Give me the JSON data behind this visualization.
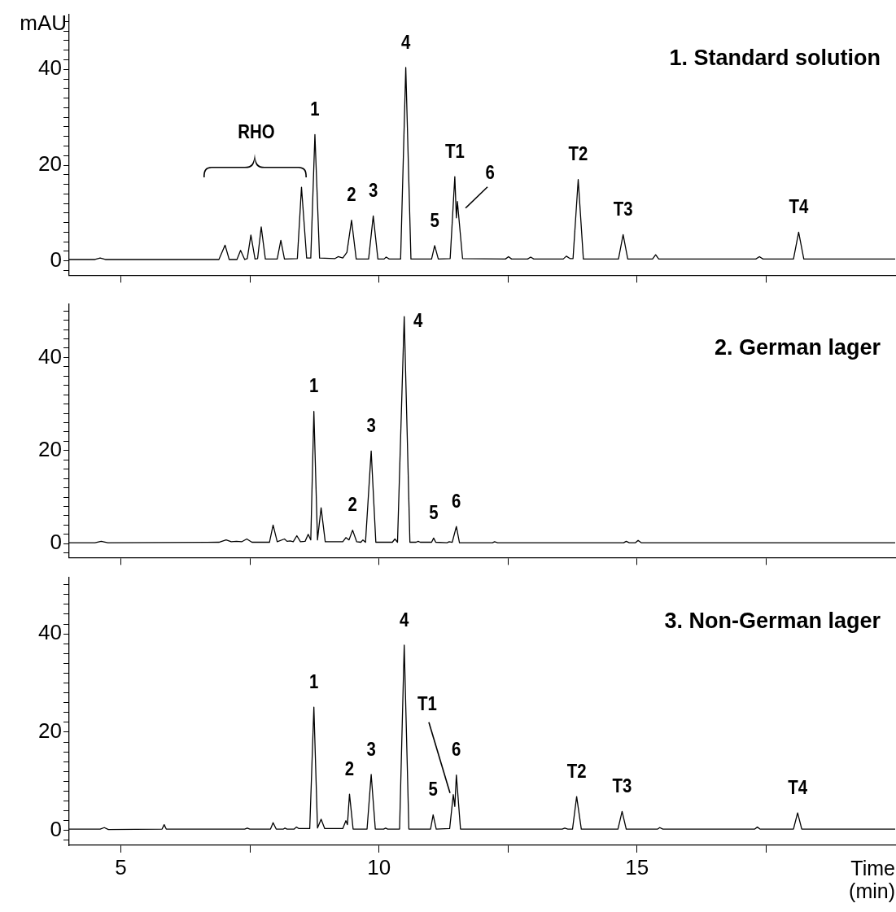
{
  "chart_data": [
    {
      "type": "line",
      "title": "1. Standard solution",
      "ylabel": "mAU",
      "series": [
        {
          "color": "#000000",
          "x": [
            4.0,
            4.5,
            4.6,
            4.7,
            6.9,
            7.02,
            7.1,
            7.25,
            7.32,
            7.4,
            7.45,
            7.52,
            7.6,
            7.65,
            7.72,
            7.8,
            8.03,
            8.1,
            8.17,
            8.42,
            8.5,
            8.6,
            8.68,
            8.76,
            8.85,
            9.15,
            9.21,
            9.3,
            9.38,
            9.47,
            9.56,
            9.8,
            9.89,
            9.98,
            10.1,
            10.14,
            10.2,
            10.42,
            10.52,
            10.62,
            11.02,
            11.08,
            11.15,
            11.38,
            11.47,
            11.5,
            11.52,
            11.62,
            12.45,
            12.51,
            12.57,
            12.88,
            12.94,
            13.0,
            13.57,
            13.63,
            13.7,
            13.76,
            13.86,
            13.96,
            14.64,
            14.73,
            14.82,
            15.3,
            15.36,
            15.42,
            17.3,
            17.37,
            17.44,
            18.03,
            18.13,
            18.23,
            20
          ],
          "values": [
            0.3,
            0.3,
            0.6,
            0.3,
            0.3,
            3.3,
            0.3,
            0.3,
            2.2,
            0.3,
            0.5,
            5.4,
            0.4,
            0.5,
            7.1,
            0.4,
            0.4,
            4.3,
            0.4,
            0.5,
            15.4,
            0.6,
            0.6,
            26.4,
            0.6,
            0.5,
            0.9,
            0.6,
            1.8,
            8.5,
            0.4,
            0.4,
            9.4,
            0.4,
            0.4,
            0.8,
            0.4,
            0.4,
            40.4,
            0.4,
            0.4,
            3.2,
            0.4,
            0.5,
            17.6,
            9.0,
            12.4,
            0.5,
            0.4,
            0.9,
            0.4,
            0.4,
            0.8,
            0.4,
            0.4,
            1.0,
            0.5,
            0.5,
            17.0,
            0.4,
            0.4,
            5.5,
            0.4,
            0.4,
            1.3,
            0.4,
            0.4,
            0.9,
            0.4,
            0.4,
            6.0,
            0.4,
            0.4
          ]
        }
      ],
      "xlim": [
        4,
        20
      ],
      "ylim": [
        -3,
        51.5
      ],
      "xticks": [
        5,
        {
          "value": 7.5,
          "label": null
        },
        10,
        {
          "value": 12.5,
          "label": null
        },
        15,
        {
          "value": 17.5,
          "label": null
        }
      ],
      "yticks": [
        {
          "value": -2,
          "label": null
        },
        0,
        {
          "value": 2,
          "label": null
        },
        {
          "value": 4,
          "label": null
        },
        {
          "value": 6,
          "label": null
        },
        {
          "value": 8,
          "label": null
        },
        {
          "value": 10,
          "label": null
        },
        {
          "value": 12,
          "label": null
        },
        {
          "value": 14,
          "label": null
        },
        {
          "value": 16,
          "label": null
        },
        {
          "value": 18,
          "label": null
        },
        20,
        {
          "value": 22,
          "label": null
        },
        {
          "value": 24,
          "label": null
        },
        {
          "value": 26,
          "label": null
        },
        {
          "value": 28,
          "label": null
        },
        {
          "value": 30,
          "label": null
        },
        {
          "value": 32,
          "label": null
        },
        {
          "value": 34,
          "label": null
        },
        {
          "value": 36,
          "label": null
        },
        {
          "value": 38,
          "label": null
        },
        40,
        {
          "value": 42,
          "label": null
        },
        {
          "value": 44,
          "label": null
        },
        {
          "value": 46,
          "label": null
        },
        {
          "value": 48,
          "label": null
        },
        {
          "value": 50,
          "label": null
        }
      ],
      "tick_labels": "y",
      "marker": "none",
      "annotations": [
        "RHO",
        {
          "text": "1",
          "x": 8.76,
          "y": 26.4
        },
        {
          "text": "2",
          "x": 9.47,
          "y": 8.5
        },
        {
          "text": "3",
          "x": 9.89,
          "y": 9.4
        },
        {
          "text": "4",
          "x": 10.52,
          "y": 40.4
        },
        {
          "text": "5",
          "x": 11.08,
          "y": 3.2
        },
        {
          "text": "T1",
          "x": 11.47,
          "y": 17.6
        },
        {
          "text": "6",
          "x": 11.52,
          "y": 12.4
        },
        {
          "text": "T2",
          "x": 13.86,
          "y": 17.0
        },
        {
          "text": "T3",
          "x": 14.73,
          "y": 5.5
        },
        {
          "text": "T4",
          "x": 18.13,
          "y": 6.0
        }
      ]
    },
    {
      "type": "line",
      "title": "2. German lager",
      "series": [
        {
          "color": "#000000",
          "x": [
            4.0,
            4.5,
            4.62,
            4.75,
            6.9,
            7.04,
            7.14,
            7.24,
            7.34,
            7.44,
            7.54,
            7.88,
            7.95,
            8.03,
            8.17,
            8.22,
            8.28,
            8.34,
            8.41,
            8.48,
            8.57,
            8.63,
            8.68,
            8.74,
            8.81,
            8.88,
            8.96,
            9.3,
            9.36,
            9.42,
            9.49,
            9.57,
            9.65,
            9.69,
            9.74,
            9.85,
            9.94,
            10.26,
            10.31,
            10.36,
            10.49,
            10.6,
            10.72,
            10.76,
            10.8,
            11.02,
            11.06,
            11.1,
            11.32,
            11.36,
            11.42,
            11.5,
            11.56,
            12.2,
            12.24,
            12.3,
            14.74,
            14.79,
            14.85,
            14.97,
            15.02,
            15.08,
            20
          ],
          "values": [
            0.2,
            0.2,
            0.5,
            0.2,
            0.3,
            0.8,
            0.4,
            0.5,
            0.4,
            1.0,
            0.3,
            0.3,
            4.0,
            0.4,
            1.0,
            0.5,
            0.6,
            0.4,
            1.7,
            0.4,
            0.5,
            2.0,
            0.8,
            28.4,
            0.8,
            7.7,
            0.4,
            0.4,
            1.3,
            0.8,
            2.9,
            0.4,
            0.3,
            0.8,
            0.3,
            19.9,
            0.3,
            0.3,
            1.0,
            0.3,
            48.8,
            0.3,
            0.3,
            0.5,
            0.3,
            0.3,
            1.2,
            0.3,
            0.2,
            0.4,
            0.3,
            3.7,
            0.2,
            0.2,
            0.4,
            0.2,
            0.2,
            0.5,
            0.2,
            0.2,
            0.7,
            0.2,
            0.2
          ]
        }
      ],
      "xlim": [
        4,
        20
      ],
      "ylim": [
        -3,
        51.5
      ],
      "xticks": [
        5,
        {
          "value": 7.5,
          "label": null
        },
        10,
        {
          "value": 12.5,
          "label": null
        },
        15,
        {
          "value": 17.5,
          "label": null
        }
      ],
      "yticks": [
        {
          "value": -2,
          "label": null
        },
        0,
        {
          "value": 2,
          "label": null
        },
        {
          "value": 4,
          "label": null
        },
        {
          "value": 6,
          "label": null
        },
        {
          "value": 8,
          "label": null
        },
        {
          "value": 10,
          "label": null
        },
        {
          "value": 12,
          "label": null
        },
        {
          "value": 14,
          "label": null
        },
        {
          "value": 16,
          "label": null
        },
        {
          "value": 18,
          "label": null
        },
        20,
        {
          "value": 22,
          "label": null
        },
        {
          "value": 24,
          "label": null
        },
        {
          "value": 26,
          "label": null
        },
        {
          "value": 28,
          "label": null
        },
        {
          "value": 30,
          "label": null
        },
        {
          "value": 32,
          "label": null
        },
        {
          "value": 34,
          "label": null
        },
        {
          "value": 36,
          "label": null
        },
        {
          "value": 38,
          "label": null
        },
        40,
        {
          "value": 42,
          "label": null
        },
        {
          "value": 44,
          "label": null
        },
        {
          "value": 46,
          "label": null
        },
        {
          "value": 48,
          "label": null
        },
        {
          "value": 50,
          "label": null
        }
      ],
      "tick_labels": "y",
      "marker": "none",
      "annotations": [
        {
          "text": "1",
          "x": 8.74,
          "y": 28.4
        },
        {
          "text": "2",
          "x": 9.49,
          "y": 2.9
        },
        {
          "text": "3",
          "x": 9.85,
          "y": 19.9
        },
        {
          "text": "4",
          "x": 10.49,
          "y": 48.8
        },
        {
          "text": "5",
          "x": 11.06,
          "y": 1.2
        },
        {
          "text": "6",
          "x": 11.5,
          "y": 3.7
        }
      ]
    },
    {
      "type": "line",
      "title": "3. Non-German lager",
      "xlabel": "Time (min)",
      "series": [
        {
          "color": "#000000",
          "x": [
            4.0,
            4.6,
            4.68,
            4.76,
            5.8,
            5.84,
            5.88,
            7.4,
            7.45,
            7.5,
            7.9,
            7.95,
            8.01,
            8.15,
            8.18,
            8.22,
            8.36,
            8.4,
            8.45,
            8.66,
            8.74,
            8.81,
            8.88,
            8.95,
            9.3,
            9.36,
            9.39,
            9.43,
            9.5,
            9.77,
            9.85,
            9.93,
            10.09,
            10.13,
            10.17,
            10.4,
            10.49,
            10.58,
            11.0,
            11.05,
            11.11,
            11.37,
            11.44,
            11.47,
            11.5,
            11.58,
            13.55,
            13.6,
            13.66,
            13.75,
            13.83,
            13.92,
            14.63,
            14.71,
            14.79,
            15.4,
            15.44,
            15.5,
            17.28,
            17.33,
            17.38,
            18.03,
            18.11,
            18.19,
            20
          ],
          "values": [
            0.3,
            0.3,
            0.6,
            0.2,
            0.3,
            1.2,
            0.3,
            0.3,
            0.5,
            0.3,
            0.3,
            1.6,
            0.3,
            0.3,
            0.5,
            0.3,
            0.3,
            0.7,
            0.4,
            0.4,
            25.1,
            0.5,
            2.3,
            0.4,
            0.4,
            2.0,
            1.2,
            7.4,
            0.3,
            0.3,
            11.4,
            0.3,
            0.3,
            0.5,
            0.3,
            0.3,
            37.7,
            0.3,
            0.3,
            3.2,
            0.3,
            0.4,
            7.3,
            4.9,
            11.3,
            0.3,
            0.3,
            0.5,
            0.3,
            0.3,
            6.9,
            0.3,
            0.3,
            3.9,
            0.3,
            0.3,
            0.6,
            0.3,
            0.3,
            0.7,
            0.3,
            0.3,
            3.6,
            0.3,
            0.3
          ]
        }
      ],
      "xlim": [
        4,
        20
      ],
      "ylim": [
        -3,
        51.5
      ],
      "xticks": [
        5,
        {
          "value": 7.5,
          "label": null
        },
        10,
        {
          "value": 12.5,
          "label": null
        },
        15,
        {
          "value": 17.5,
          "label": null
        }
      ],
      "yticks": [
        {
          "value": -2,
          "label": null
        },
        0,
        {
          "value": 2,
          "label": null
        },
        {
          "value": 4,
          "label": null
        },
        {
          "value": 6,
          "label": null
        },
        {
          "value": 8,
          "label": null
        },
        {
          "value": 10,
          "label": null
        },
        {
          "value": 12,
          "label": null
        },
        {
          "value": 14,
          "label": null
        },
        {
          "value": 16,
          "label": null
        },
        {
          "value": 18,
          "label": null
        },
        20,
        {
          "value": 22,
          "label": null
        },
        {
          "value": 24,
          "label": null
        },
        {
          "value": 26,
          "label": null
        },
        {
          "value": 28,
          "label": null
        },
        {
          "value": 30,
          "label": null
        },
        {
          "value": 32,
          "label": null
        },
        {
          "value": 34,
          "label": null
        },
        {
          "value": 36,
          "label": null
        },
        {
          "value": 38,
          "label": null
        },
        40,
        {
          "value": 42,
          "label": null
        },
        {
          "value": 44,
          "label": null
        },
        {
          "value": 46,
          "label": null
        },
        {
          "value": 48,
          "label": null
        },
        {
          "value": 50,
          "label": null
        }
      ],
      "marker": "none",
      "annotations": [
        {
          "text": "1",
          "x": 8.74,
          "y": 25.1
        },
        {
          "text": "2",
          "x": 9.43,
          "y": 7.4
        },
        {
          "text": "3",
          "x": 9.85,
          "y": 11.4
        },
        {
          "text": "4",
          "x": 10.49,
          "y": 37.7
        },
        {
          "text": "T1",
          "x": 11.44,
          "y": 7.3
        },
        {
          "text": "5",
          "x": 11.05,
          "y": 3.2
        },
        {
          "text": "6",
          "x": 11.5,
          "y": 11.3
        },
        {
          "text": "T2",
          "x": 13.83,
          "y": 6.9
        },
        {
          "text": "T3",
          "x": 14.71,
          "y": 3.9
        },
        {
          "text": "T4",
          "x": 18.11,
          "y": 3.6
        }
      ]
    }
  ]
}
